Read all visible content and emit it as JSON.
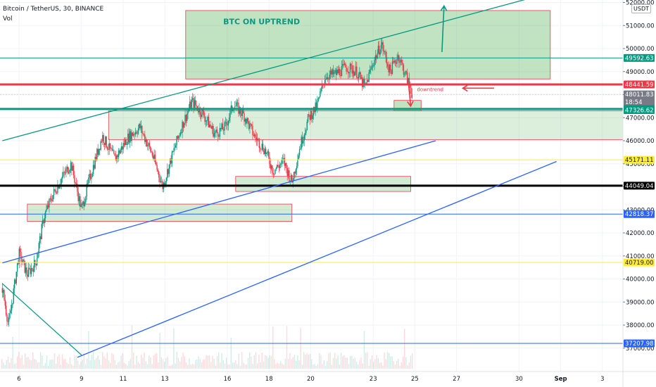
{
  "header": {
    "title": "Bitcoin / TetherUS, 30, BINANCE",
    "volume_label": "Vol"
  },
  "axis": {
    "unit_badge": "USDT",
    "price_ticks": [
      52000,
      51000,
      50000,
      49000,
      48000,
      47000,
      46000,
      45000,
      44000,
      43000,
      42000,
      41000,
      40000,
      39000,
      38000,
      37000
    ],
    "price_tick_labels": [
      "52000.00",
      "51000.00",
      "50000.00",
      "49000.00",
      "48000.00",
      "47000.00",
      "46000.00",
      "45000.00",
      "44000.00",
      "43000.00",
      "42000.00",
      "41000.00",
      "40000.00",
      "39000.00",
      "38000.00",
      "37000.00"
    ],
    "date_ticks": [
      {
        "label": "6",
        "day": 6
      },
      {
        "label": "9",
        "day": 9
      },
      {
        "label": "11",
        "day": 11
      },
      {
        "label": "13",
        "day": 13
      },
      {
        "label": "16",
        "day": 16
      },
      {
        "label": "18",
        "day": 18
      },
      {
        "label": "20",
        "day": 20
      },
      {
        "label": "23",
        "day": 23
      },
      {
        "label": "25",
        "day": 25
      },
      {
        "label": "27",
        "day": 27
      },
      {
        "label": "30",
        "day": 30
      },
      {
        "label": "Sep",
        "day": 32
      },
      {
        "label": "3",
        "day": 34
      }
    ]
  },
  "price_tags": [
    {
      "value": 49592.63,
      "label": "49592.63",
      "color": "#089981"
    },
    {
      "value": 48441.59,
      "label": "48441.59",
      "color": "#f23645"
    },
    {
      "value": 48011.83,
      "label": "48011.83",
      "sub": "18:54",
      "color": "#787b86"
    },
    {
      "value": 47379.76,
      "label": "47379.76",
      "color": "#089981"
    },
    {
      "value": 47326.62,
      "label": "47326.62",
      "color": "#089981"
    },
    {
      "value": 45171.11,
      "label": "45171.11",
      "color": "#ffeb3b",
      "text_color": "#131722"
    },
    {
      "value": 44049.04,
      "label": "44049.04",
      "color": "#000000"
    },
    {
      "value": 42818.37,
      "label": "42818.37",
      "color": "#2962ff"
    },
    {
      "value": 40719.0,
      "label": "40719.00",
      "color": "#ffeb3b",
      "text_color": "#131722"
    },
    {
      "value": 37207.98,
      "label": "37207.98",
      "color": "#2962ff"
    }
  ],
  "annotations": {
    "btc_uptrend": "BTC ON UPTREND",
    "downtrend": "downtrend"
  },
  "chart_data": {
    "type": "candlestick",
    "symbol": "BTCUSDT",
    "interval": "30",
    "exchange": "BINANCE",
    "ylim": [
      36500,
      52300
    ],
    "xlim_days": [
      5.2,
      35
    ],
    "horizontal_levels": [
      {
        "price": 49592.63,
        "color": "#089981",
        "width": 1
      },
      {
        "price": 48441.59,
        "color": "#f23645",
        "width": 3
      },
      {
        "price": 47379.76,
        "color": "#089981",
        "width": 3
      },
      {
        "price": 45171.11,
        "color": "#ffeb3b",
        "width": 1
      },
      {
        "price": 44049.04,
        "color": "#000000",
        "width": 3
      },
      {
        "price": 42818.37,
        "color": "#2962ff",
        "width": 1
      },
      {
        "price": 40719.0,
        "color": "#ffeb3b",
        "width": 1
      },
      {
        "price": 37207.98,
        "color": "#2962ff",
        "width": 1
      }
    ],
    "price_path": [
      {
        "day": 5.2,
        "price": 39600
      },
      {
        "day": 5.5,
        "price": 38000
      },
      {
        "day": 5.7,
        "price": 39200
      },
      {
        "day": 6.0,
        "price": 41100
      },
      {
        "day": 6.4,
        "price": 40200
      },
      {
        "day": 6.8,
        "price": 40700
      },
      {
        "day": 7.2,
        "price": 42700
      },
      {
        "day": 7.6,
        "price": 43600
      },
      {
        "day": 8.0,
        "price": 44300
      },
      {
        "day": 8.5,
        "price": 45000
      },
      {
        "day": 9.0,
        "price": 43000
      },
      {
        "day": 9.4,
        "price": 44400
      },
      {
        "day": 10.0,
        "price": 46200
      },
      {
        "day": 10.6,
        "price": 45200
      },
      {
        "day": 11.2,
        "price": 46100
      },
      {
        "day": 11.8,
        "price": 46600
      },
      {
        "day": 12.4,
        "price": 45400
      },
      {
        "day": 12.9,
        "price": 44000
      },
      {
        "day": 13.3,
        "price": 45200
      },
      {
        "day": 13.8,
        "price": 46600
      },
      {
        "day": 14.3,
        "price": 47700
      },
      {
        "day": 14.8,
        "price": 47200
      },
      {
        "day": 15.4,
        "price": 46300
      },
      {
        "day": 15.9,
        "price": 46600
      },
      {
        "day": 16.3,
        "price": 47600
      },
      {
        "day": 16.8,
        "price": 47100
      },
      {
        "day": 17.3,
        "price": 46200
      },
      {
        "day": 17.8,
        "price": 45600
      },
      {
        "day": 18.2,
        "price": 44700
      },
      {
        "day": 18.7,
        "price": 45100
      },
      {
        "day": 19.1,
        "price": 44200
      },
      {
        "day": 19.5,
        "price": 45800
      },
      {
        "day": 19.9,
        "price": 47000
      },
      {
        "day": 20.3,
        "price": 47500
      },
      {
        "day": 20.7,
        "price": 48800
      },
      {
        "day": 21.2,
        "price": 48900
      },
      {
        "day": 21.7,
        "price": 49200
      },
      {
        "day": 22.2,
        "price": 49000
      },
      {
        "day": 22.6,
        "price": 48300
      },
      {
        "day": 23.0,
        "price": 49400
      },
      {
        "day": 23.4,
        "price": 50200
      },
      {
        "day": 23.8,
        "price": 49000
      },
      {
        "day": 24.2,
        "price": 49700
      },
      {
        "day": 24.5,
        "price": 49000
      },
      {
        "day": 24.9,
        "price": 48000
      }
    ],
    "trendlines": [
      {
        "color": "#089981",
        "from": {
          "day": 5.2,
          "price": 46000
        },
        "to": {
          "day": 31.0,
          "price": 52300
        }
      },
      {
        "color": "#2962ff",
        "from": {
          "day": 5.2,
          "price": 40700
        },
        "to": {
          "day": 26.0,
          "price": 46000
        }
      },
      {
        "color": "#2962ff",
        "from": {
          "day": 8.8,
          "price": 36600
        },
        "to": {
          "day": 31.8,
          "price": 45100
        }
      },
      {
        "color": "#089981",
        "from": {
          "day": 5.2,
          "price": 39800
        },
        "to": {
          "day": 9.0,
          "price": 36700
        }
      }
    ],
    "zones": [
      {
        "from_day": 14.0,
        "to_day": 31.5,
        "top": 51650,
        "bottom": 48680,
        "fill": "rgba(76,175,80,0.35)",
        "stroke": "#f23645"
      },
      {
        "from_day": 10.3,
        "to_day": 35,
        "top": 47300,
        "bottom": 46050,
        "fill": "rgba(76,175,80,0.2)",
        "stroke": "#f23645"
      },
      {
        "from_day": 6.4,
        "to_day": 19.1,
        "top": 43250,
        "bottom": 42500,
        "fill": "rgba(76,175,80,0.25)",
        "stroke": "#f23645"
      },
      {
        "from_day": 16.4,
        "to_day": 24.8,
        "top": 44450,
        "bottom": 43800,
        "fill": "rgba(76,175,80,0.25)",
        "stroke": "#f23645"
      },
      {
        "from_day": 24.0,
        "to_day": 25.3,
        "top": 47750,
        "bottom": 47300,
        "fill": "rgba(76,175,80,0.35)",
        "stroke": "#f23645"
      }
    ],
    "arrows": [
      {
        "color": "#089981",
        "from": {
          "day": 26.3,
          "price": 49850
        },
        "to": {
          "day": 26.4,
          "price": 51850
        }
      },
      {
        "color": "#f23645",
        "from": {
          "day": 28.8,
          "price": 48280
        },
        "to": {
          "day": 27.3,
          "price": 48280
        }
      },
      {
        "color": "#f23645",
        "from": {
          "day": 24.7,
          "price": 48440
        },
        "to": {
          "day": 24.8,
          "price": 47500
        }
      }
    ]
  }
}
